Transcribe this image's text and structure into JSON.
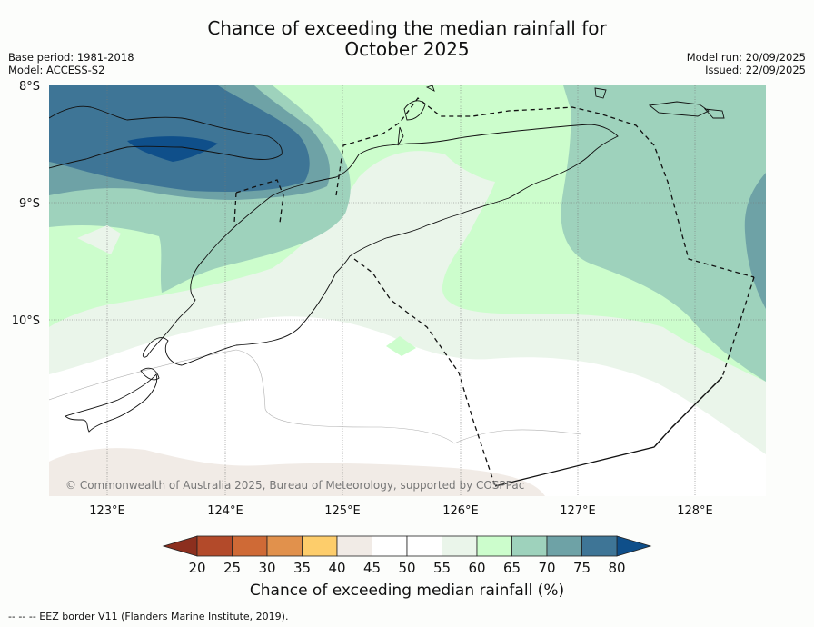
{
  "title": {
    "line1": "Chance of exceeding the median rainfall for",
    "line2": "October 2025"
  },
  "meta": {
    "base_period": "Base period: 1981-2018",
    "model": "Model: ACCESS-S2",
    "model_run": "Model run: 20/09/2025",
    "issued": "Issued: 22/09/2025"
  },
  "map": {
    "lat_labels": [
      "8°S",
      "9°S",
      "10°S"
    ],
    "lon_labels": [
      "123°E",
      "124°E",
      "125°E",
      "126°E",
      "127°E",
      "128°E"
    ],
    "copyright": "© Commonwealth of Australia 2025, Bureau of Meteorology, supported by COSPPac"
  },
  "colorbar": {
    "ticks": [
      "20",
      "25",
      "30",
      "35",
      "40",
      "45",
      "50",
      "55",
      "60",
      "65",
      "70",
      "75",
      "80"
    ],
    "colors": [
      "#b34a2a",
      "#cf6a36",
      "#e1914c",
      "#fdcd6b",
      "#f1ebe6",
      "#ffffff",
      "#ffffff",
      "#eaf5ea",
      "#ccfdcc",
      "#9ed2bc",
      "#6ea2a6",
      "#3e7596"
    ],
    "low_extension_color": "#8c2f1e",
    "high_extension_color": "#0f4f8a",
    "title": "Chance of exceeding median rainfall (%)"
  },
  "footnote": "--  --  -- EEZ border V11 (Flanders Marine Institute, 2019)."
}
